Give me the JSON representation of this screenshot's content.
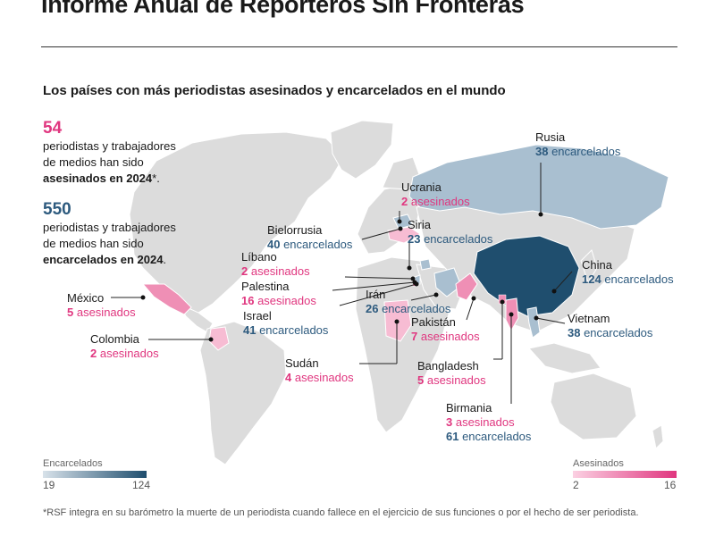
{
  "title": "Informe Anual de Reporteros Sin Fronteras",
  "subtitle": "Los países con más periodistas asesinados y encarcelados en el mundo",
  "stats": {
    "killed": {
      "value": "54",
      "line1": "periodistas y trabajadores",
      "line2": "de medios han sido",
      "emphasis": "asesinados en 2024",
      "suffix": "*."
    },
    "jailed": {
      "value": "550",
      "line1": "periodistas y trabajadores",
      "line2": "de medios han sido",
      "emphasis": "encarcelados en 2024",
      "suffix": "."
    }
  },
  "countries": {
    "rusia": {
      "name": "Rusia",
      "v1_num": "38",
      "v1_txt": " encarcelados"
    },
    "ucrania": {
      "name": "Ucrania",
      "v1_num": "2",
      "v1_txt": " asesinados"
    },
    "bielorrusia": {
      "name": "Bielorrusia",
      "v1_num": "40",
      "v1_txt": " encarcelados"
    },
    "siria": {
      "name": "Siria",
      "v1_num": "23",
      "v1_txt": " encarcelados"
    },
    "libano": {
      "name": "Líbano",
      "v1_num": "2",
      "v1_txt": " asesinados"
    },
    "palestina": {
      "name": "Palestina",
      "v1_num": "16",
      "v1_txt": " asesinados"
    },
    "israel": {
      "name": "Israel",
      "v1_num": "41",
      "v1_txt": " encarcelados"
    },
    "iran": {
      "name": "Irán",
      "v1_num": "26",
      "v1_txt": " encarcelados"
    },
    "china": {
      "name": "China",
      "v1_num": "124",
      "v1_txt": " encarcelados"
    },
    "pakistan": {
      "name": "Pakistán",
      "v1_num": "7",
      "v1_txt": " asesinados"
    },
    "vietnam": {
      "name": "Vietnam",
      "v1_num": "38",
      "v1_txt": " encarcelados"
    },
    "mexico": {
      "name": "México",
      "v1_num": "5",
      "v1_txt": " asesinados"
    },
    "colombia": {
      "name": "Colombia",
      "v1_num": "2",
      "v1_txt": " asesinados"
    },
    "sudan": {
      "name": "Sudán",
      "v1_num": "4",
      "v1_txt": " asesinados"
    },
    "bangladesh": {
      "name": "Bangladesh",
      "v1_num": "5",
      "v1_txt": " asesinados"
    },
    "birmania": {
      "name": "Birmania",
      "v1_num": "3",
      "v1_txt": " asesinados",
      "v2_num": "61",
      "v2_txt": " encarcelados"
    }
  },
  "legend": {
    "jailed": {
      "label": "Encarcelados",
      "min": "19",
      "max": "124",
      "color_low": "#d8e2ea",
      "color_high": "#1f4e6e"
    },
    "killed": {
      "label": "Asesinados",
      "min": "2",
      "max": "16",
      "color_low": "#fbd0e2",
      "color_high": "#e0367f"
    }
  },
  "colors": {
    "land": "#dcdcdc",
    "jailed_high": "#1f4e6e",
    "jailed_mid": "#a9bfd0",
    "killed_high": "#e0367f",
    "killed_mid": "#ef8fb5",
    "killed_low": "#f7bcd3"
  },
  "footnote": "*RSF integra en su barómetro la muerte de un periodista cuando fallece en el ejercicio de sus funciones o por el hecho de ser periodista."
}
